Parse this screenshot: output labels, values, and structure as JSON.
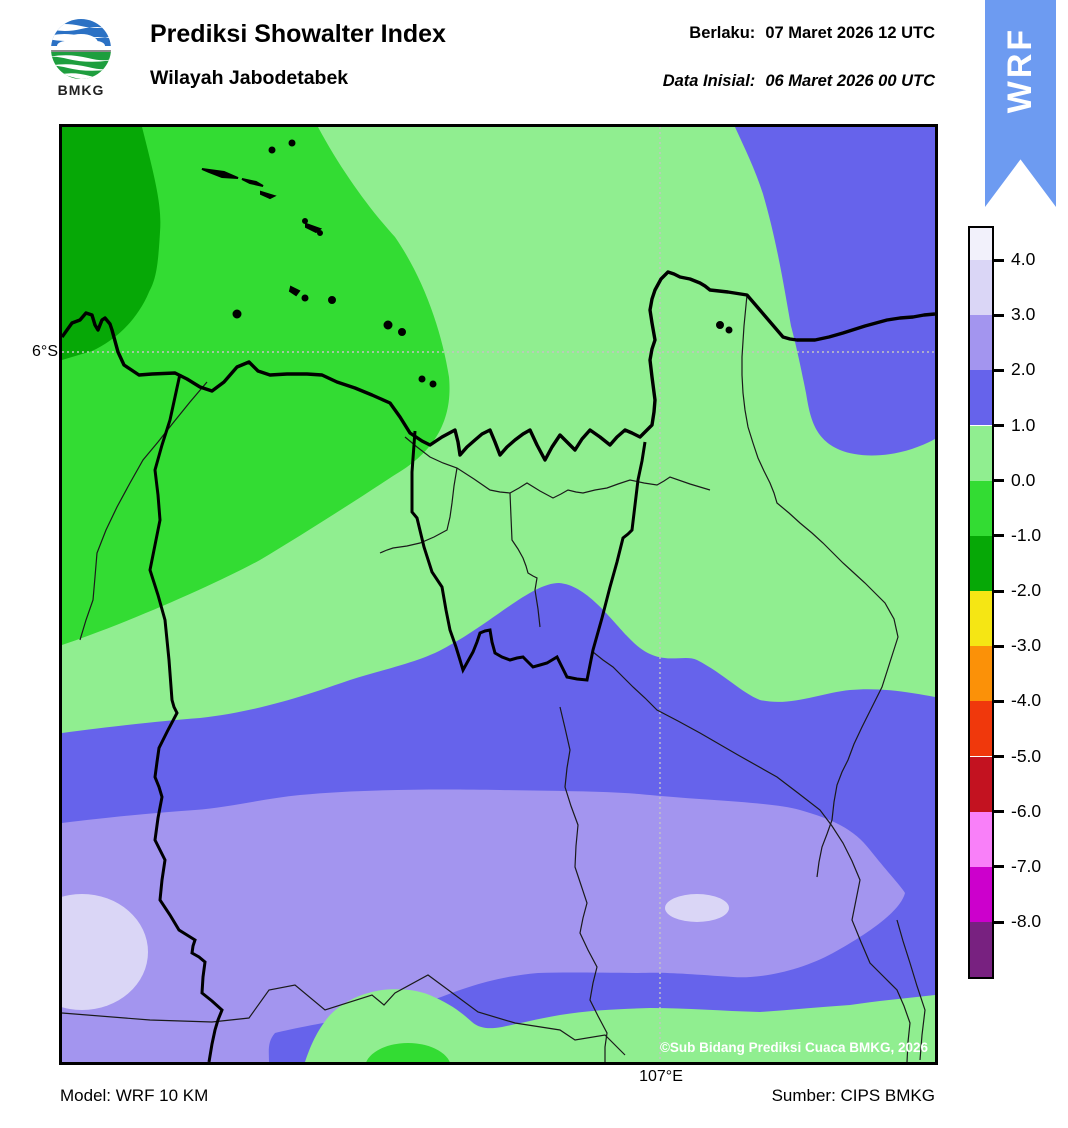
{
  "header": {
    "logo_text": "BMKG",
    "title": "Prediksi Showalter Index",
    "subtitle": "Wilayah Jabodetabek",
    "valid_label": "Berlaku:",
    "valid_value": "07 Maret 2026 12 UTC",
    "init_label": "Data Inisial:",
    "init_value": "06 Maret 2026 00 UTC",
    "ribbon_label": "WRF"
  },
  "map": {
    "lat_tick_label": "6°S",
    "lon_tick_label": "107°E",
    "copyright": "©Sub Bidang Prediksi Cuaca BMKG, 2026"
  },
  "colorbar": {
    "tick_labels": [
      "4.0",
      "3.0",
      "2.0",
      "1.0",
      "0.0",
      "-1.0",
      "-2.0",
      "-3.0",
      "-4.0",
      "-5.0",
      "-6.0",
      "-7.0",
      "-8.0"
    ],
    "segment_colors_top_to_bottom": [
      "#F2F1FB",
      "#DAD6F6",
      "#A395EF",
      "#6663EB",
      "#90EE90",
      "#33DC33",
      "#06A806",
      "#F5E614",
      "#FB9108",
      "#F0380C",
      "#C31220",
      "#F980F9",
      "#CC00CC",
      "#782180"
    ]
  },
  "footer": {
    "model": "Model: WRF 10 KM",
    "source": "Sumber: CIPS BMKG"
  },
  "palette": {
    "near_white": "#F2F1FB",
    "lavender": "#DAD6F6",
    "purple": "#A395EF",
    "blue": "#6663EB",
    "green_light": "#90EE90",
    "green_bright": "#33DC33",
    "green_dark": "#06A806",
    "ribbon": "#6D9BF1",
    "logo_blue": "#2B71C4",
    "logo_green": "#1E9E3E",
    "gridline": "#C3C3C3"
  }
}
